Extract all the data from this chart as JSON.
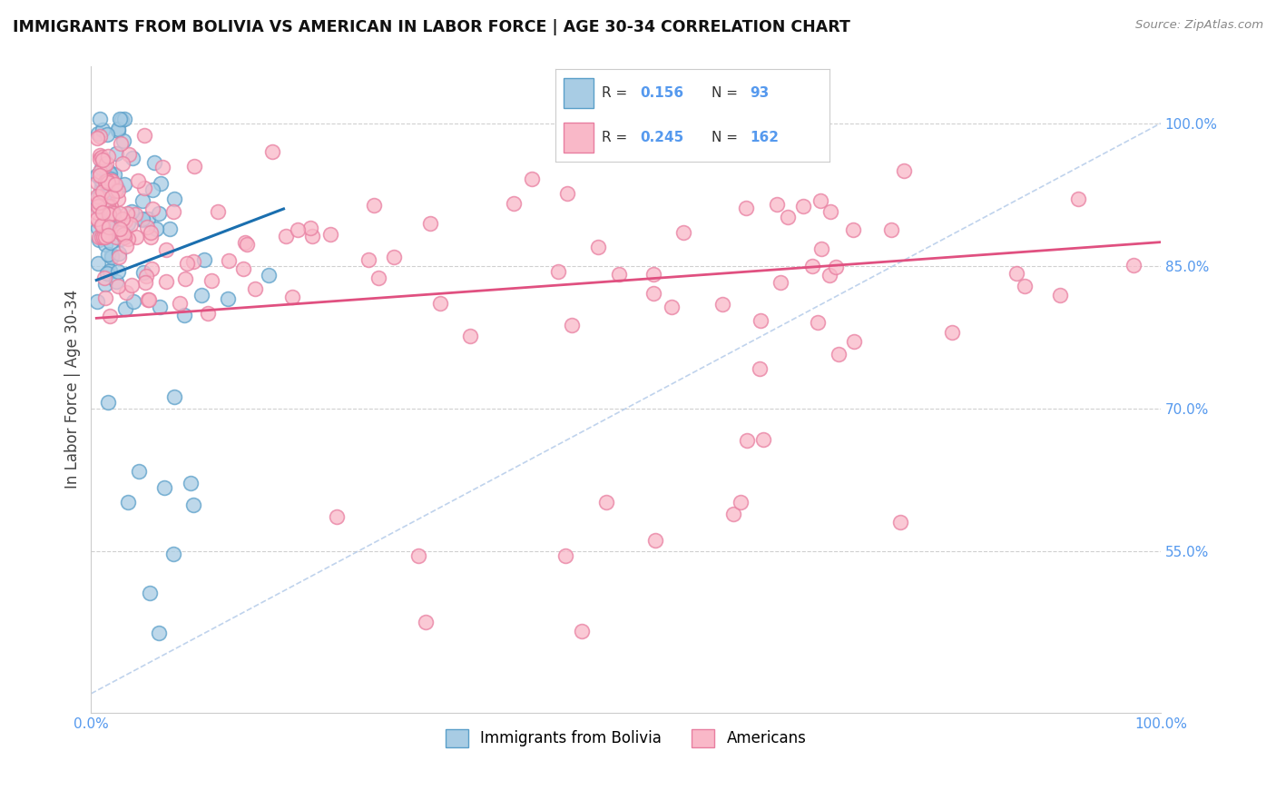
{
  "title": "IMMIGRANTS FROM BOLIVIA VS AMERICAN IN LABOR FORCE | AGE 30-34 CORRELATION CHART",
  "source": "Source: ZipAtlas.com",
  "ylabel": "In Labor Force | Age 30-34",
  "xlim": [
    0.0,
    1.0
  ],
  "ylim": [
    0.38,
    1.06
  ],
  "blue_R": 0.156,
  "blue_N": 93,
  "pink_R": 0.245,
  "pink_N": 162,
  "blue_color": "#a8cce4",
  "pink_color": "#f9b8c8",
  "blue_edge_color": "#5a9fc9",
  "pink_edge_color": "#e87ea0",
  "blue_line_color": "#1a6faf",
  "pink_line_color": "#e05080",
  "dash_line_color": "#b0c8e8",
  "legend_label_blue": "Immigrants from Bolivia",
  "legend_label_pink": "Americans",
  "background_color": "#ffffff",
  "grid_color": "#d0d0d0",
  "title_color": "#111111",
  "axis_label_color": "#444444",
  "ytick_color": "#5599ee",
  "xtick_color": "#5599ee",
  "ytick_vals": [
    0.55,
    0.7,
    0.85,
    1.0
  ],
  "ytick_labels": [
    "55.0%",
    "70.0%",
    "85.0%",
    "100.0%"
  ]
}
